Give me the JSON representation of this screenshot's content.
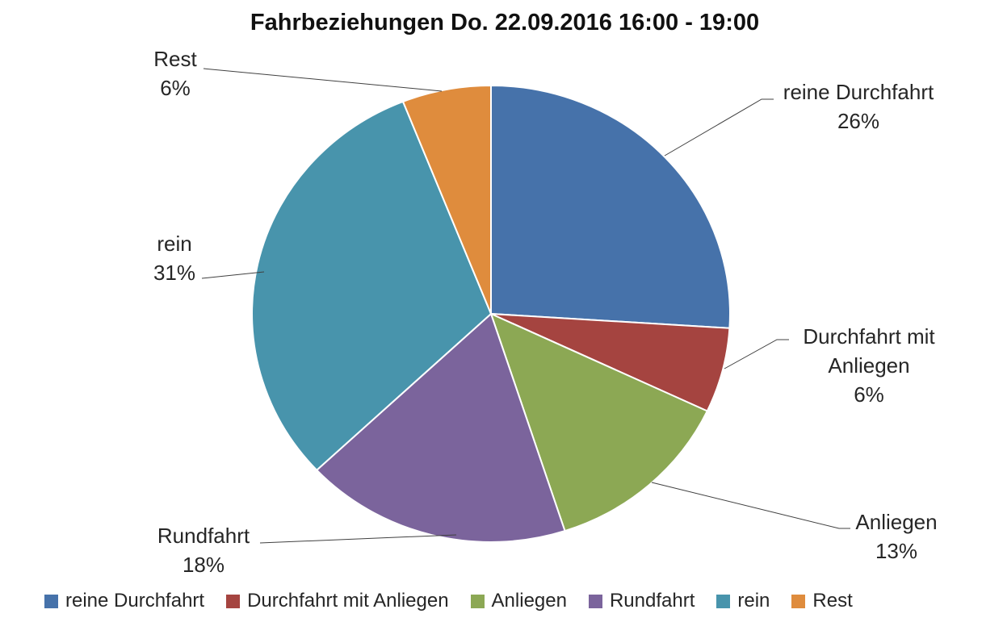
{
  "title": "Fahrbeziehungen Do. 22.09.2016 16:00 - 19:00",
  "chart_data": {
    "type": "pie",
    "title": "Fahrbeziehungen Do. 22.09.2016 16:00 - 19:00",
    "unit": "%",
    "start_angle_deg": 0,
    "direction": "clockwise",
    "legend_position": "bottom",
    "grid": false,
    "categories": [
      "reine Durchfahrt",
      "Durchfahrt mit Anliegen",
      "Anliegen",
      "Rundfahrt",
      "rein",
      "Rest"
    ],
    "values": [
      26,
      6,
      13,
      18,
      31,
      6
    ],
    "pct_labels": [
      "26%",
      "6%",
      "13%",
      "18%",
      "31%",
      "6%"
    ],
    "colors": [
      "#4672AA",
      "#A54440",
      "#8CA854",
      "#7B649C",
      "#4894AC",
      "#DF8C3D"
    ],
    "slice_border_color": "#FFFFFF",
    "leader_line_color": "#404040",
    "callouts": [
      {
        "lines": [
          "reine Durchfahrt",
          "26%"
        ]
      },
      {
        "lines": [
          "Durchfahrt mit",
          "Anliegen",
          "6%"
        ]
      },
      {
        "lines": [
          "Anliegen",
          "13%"
        ]
      },
      {
        "lines": [
          "Rundfahrt",
          "18%"
        ]
      },
      {
        "lines": [
          "rein",
          "31%"
        ]
      },
      {
        "lines": [
          "Rest",
          "6%"
        ]
      }
    ]
  }
}
